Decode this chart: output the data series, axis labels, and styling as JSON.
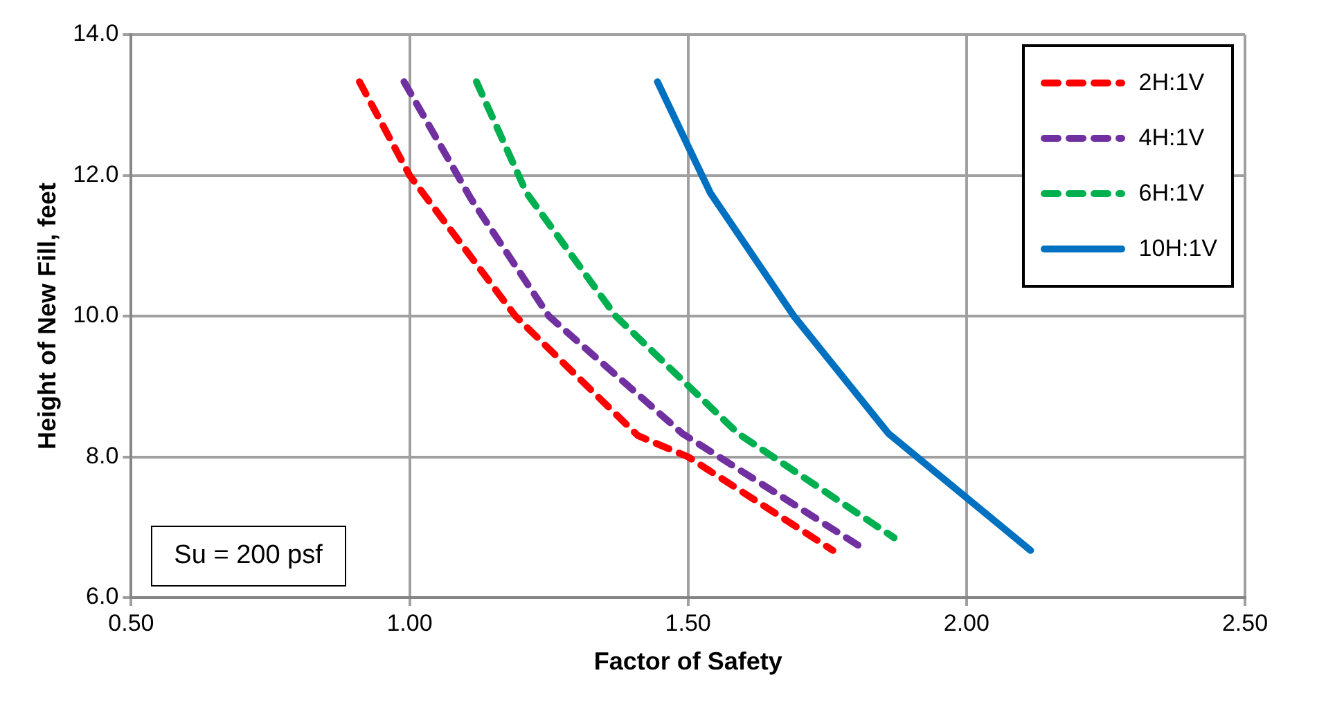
{
  "chart_data": {
    "type": "line",
    "xlabel": "Factor of Safety",
    "ylabel": "Height of New Fill, feet",
    "xlim": [
      0.5,
      2.5
    ],
    "xticks": [
      {
        "value": 0.5,
        "label": "0.50"
      },
      {
        "value": 1,
        "label": "1.00"
      },
      {
        "value": 1.5,
        "label": "1.50"
      },
      {
        "value": 2,
        "label": "2.00"
      },
      {
        "value": 2.5,
        "label": "2.50"
      }
    ],
    "ylim": [
      6,
      14
    ],
    "yticks": [
      {
        "value": 6,
        "label": "6.0"
      },
      {
        "value": 8,
        "label": "8.0"
      },
      {
        "value": 10,
        "label": "10.0"
      },
      {
        "value": 12,
        "label": "12.0"
      },
      {
        "value": 14,
        "label": "14.0"
      }
    ],
    "grid": true,
    "legend": "top right",
    "marker": "none",
    "annotations": [
      "Su = 200 psf"
    ],
    "series": [
      {
        "name": "2H:1V",
        "color": "#ff0000",
        "line_style": "dashed",
        "x": [
          0.91,
          1.0,
          1.19,
          1.41,
          1.5,
          1.76
        ],
        "values": [
          13.33,
          12.0,
          10.0,
          8.3,
          8.0,
          6.67
        ]
      },
      {
        "name": "4H:1V",
        "color": "#7030a0",
        "line_style": "dashed",
        "x": [
          0.99,
          1.11,
          1.25,
          1.49,
          1.82
        ],
        "values": [
          13.33,
          11.67,
          10.0,
          8.33,
          6.67
        ]
      },
      {
        "name": "6H:1V",
        "color": "#00b050",
        "line_style": "dashed",
        "x": [
          1.12,
          1.21,
          1.37,
          1.59,
          1.87
        ],
        "values": [
          13.33,
          11.75,
          10.0,
          8.33,
          6.85
        ]
      },
      {
        "name": "10H:1V",
        "color": "#0070c0",
        "line_style": "solid",
        "x": [
          1.445,
          1.54,
          1.69,
          1.86,
          2.115
        ],
        "values": [
          13.33,
          11.75,
          10.0,
          8.33,
          6.67
        ]
      }
    ]
  }
}
